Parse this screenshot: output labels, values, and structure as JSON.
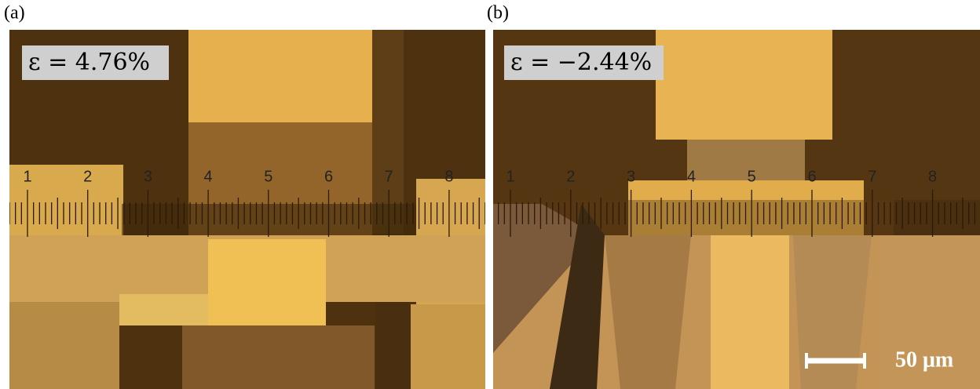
{
  "panels": [
    {
      "label": "(a)",
      "strain": "ε = 4.76%",
      "ruler": [
        "1",
        "2",
        "3",
        "4",
        "5",
        "6",
        "7",
        "8"
      ]
    },
    {
      "label": "(b)",
      "strain": "ε = −2.44%",
      "ruler": [
        "1",
        "2",
        "3",
        "4",
        "5",
        "6",
        "7",
        "8"
      ],
      "scale_bar": "50 μm"
    }
  ]
}
